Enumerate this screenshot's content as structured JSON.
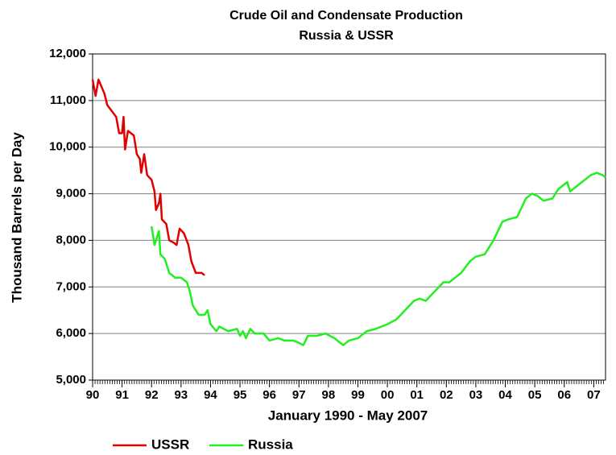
{
  "chart_data": {
    "type": "line",
    "title": "Crude Oil and Condensate Production",
    "subtitle": "Russia & USSR",
    "xlabel": "January 1990 - May 2007",
    "ylabel": "Thousand Barrels per Day",
    "xlim": [
      1990,
      2007.4
    ],
    "ylim": [
      5000,
      12000
    ],
    "xticks": [
      {
        "value": 1990,
        "label": "90"
      },
      {
        "value": 1991,
        "label": "91"
      },
      {
        "value": 1992,
        "label": "92"
      },
      {
        "value": 1993,
        "label": "93"
      },
      {
        "value": 1994,
        "label": "94"
      },
      {
        "value": 1995,
        "label": "95"
      },
      {
        "value": 1996,
        "label": "96"
      },
      {
        "value": 1997,
        "label": "97"
      },
      {
        "value": 1998,
        "label": "98"
      },
      {
        "value": 1999,
        "label": "99"
      },
      {
        "value": 2000,
        "label": "00"
      },
      {
        "value": 2001,
        "label": "01"
      },
      {
        "value": 2002,
        "label": "02"
      },
      {
        "value": 2003,
        "label": "03"
      },
      {
        "value": 2004,
        "label": "04"
      },
      {
        "value": 2005,
        "label": "05"
      },
      {
        "value": 2006,
        "label": "06"
      },
      {
        "value": 2007,
        "label": "07"
      }
    ],
    "yticks": [
      {
        "value": 5000,
        "label": "5,000"
      },
      {
        "value": 6000,
        "label": "6,000"
      },
      {
        "value": 7000,
        "label": "7,000"
      },
      {
        "value": 8000,
        "label": "8,000"
      },
      {
        "value": 9000,
        "label": "9,000"
      },
      {
        "value": 10000,
        "label": "10,000"
      },
      {
        "value": 11000,
        "label": "11,000"
      },
      {
        "value": 12000,
        "label": "12,000"
      }
    ],
    "grid": true,
    "legend": "bottom",
    "series": [
      {
        "name": "USSR",
        "color": "#e00000",
        "x": [
          1990.0,
          1990.1,
          1990.2,
          1990.4,
          1990.5,
          1990.8,
          1990.9,
          1991.0,
          1991.05,
          1991.1,
          1991.2,
          1991.4,
          1991.5,
          1991.6,
          1991.65,
          1991.75,
          1991.85,
          1992.0,
          1992.1,
          1992.15,
          1992.25,
          1992.3,
          1992.35,
          1992.5,
          1992.6,
          1992.75,
          1992.85,
          1992.95,
          1993.1,
          1993.25,
          1993.35,
          1993.5,
          1993.7,
          1993.8
        ],
        "values": [
          11450,
          11100,
          11450,
          11150,
          10900,
          10650,
          10300,
          10300,
          10650,
          9950,
          10350,
          10250,
          9850,
          9750,
          9450,
          9850,
          9400,
          9300,
          9050,
          8650,
          8800,
          9000,
          8450,
          8350,
          8000,
          7950,
          7900,
          8250,
          8150,
          7900,
          7550,
          7300,
          7300,
          7250
        ]
      },
      {
        "name": "Russia",
        "color": "#22ee22",
        "x": [
          1992.0,
          1992.1,
          1992.25,
          1992.3,
          1992.45,
          1992.6,
          1992.8,
          1993.0,
          1993.2,
          1993.3,
          1993.4,
          1993.6,
          1993.8,
          1993.9,
          1994.0,
          1994.2,
          1994.3,
          1994.6,
          1994.9,
          1995.0,
          1995.1,
          1995.2,
          1995.35,
          1995.5,
          1995.8,
          1996.0,
          1996.3,
          1996.5,
          1996.8,
          1997.0,
          1997.15,
          1997.3,
          1997.6,
          1997.9,
          1998.2,
          1998.4,
          1998.5,
          1998.7,
          1999.0,
          1999.3,
          1999.6,
          2000.0,
          2000.3,
          2000.6,
          2000.9,
          2001.1,
          2001.3,
          2001.6,
          2001.9,
          2002.1,
          2002.5,
          2002.8,
          2003.0,
          2003.3,
          2003.6,
          2003.9,
          2004.1,
          2004.4,
          2004.7,
          2004.9,
          2005.1,
          2005.3,
          2005.6,
          2005.8,
          2006.0,
          2006.1,
          2006.2,
          2006.4,
          2006.6,
          2006.8,
          2006.9,
          2007.1,
          2007.3,
          2007.4
        ],
        "values": [
          8300,
          7900,
          8200,
          7700,
          7600,
          7300,
          7200,
          7200,
          7100,
          6900,
          6600,
          6400,
          6400,
          6500,
          6200,
          6050,
          6150,
          6050,
          6100,
          5950,
          6050,
          5900,
          6100,
          6000,
          6000,
          5850,
          5900,
          5850,
          5850,
          5800,
          5750,
          5950,
          5950,
          6000,
          5900,
          5800,
          5750,
          5850,
          5900,
          6050,
          6100,
          6200,
          6300,
          6500,
          6700,
          6750,
          6700,
          6900,
          7100,
          7100,
          7300,
          7550,
          7650,
          7700,
          8000,
          8400,
          8450,
          8500,
          8900,
          9000,
          8950,
          8850,
          8900,
          9100,
          9200,
          9250,
          9050,
          9150,
          9250,
          9350,
          9400,
          9450,
          9400,
          9350
        ]
      }
    ]
  }
}
